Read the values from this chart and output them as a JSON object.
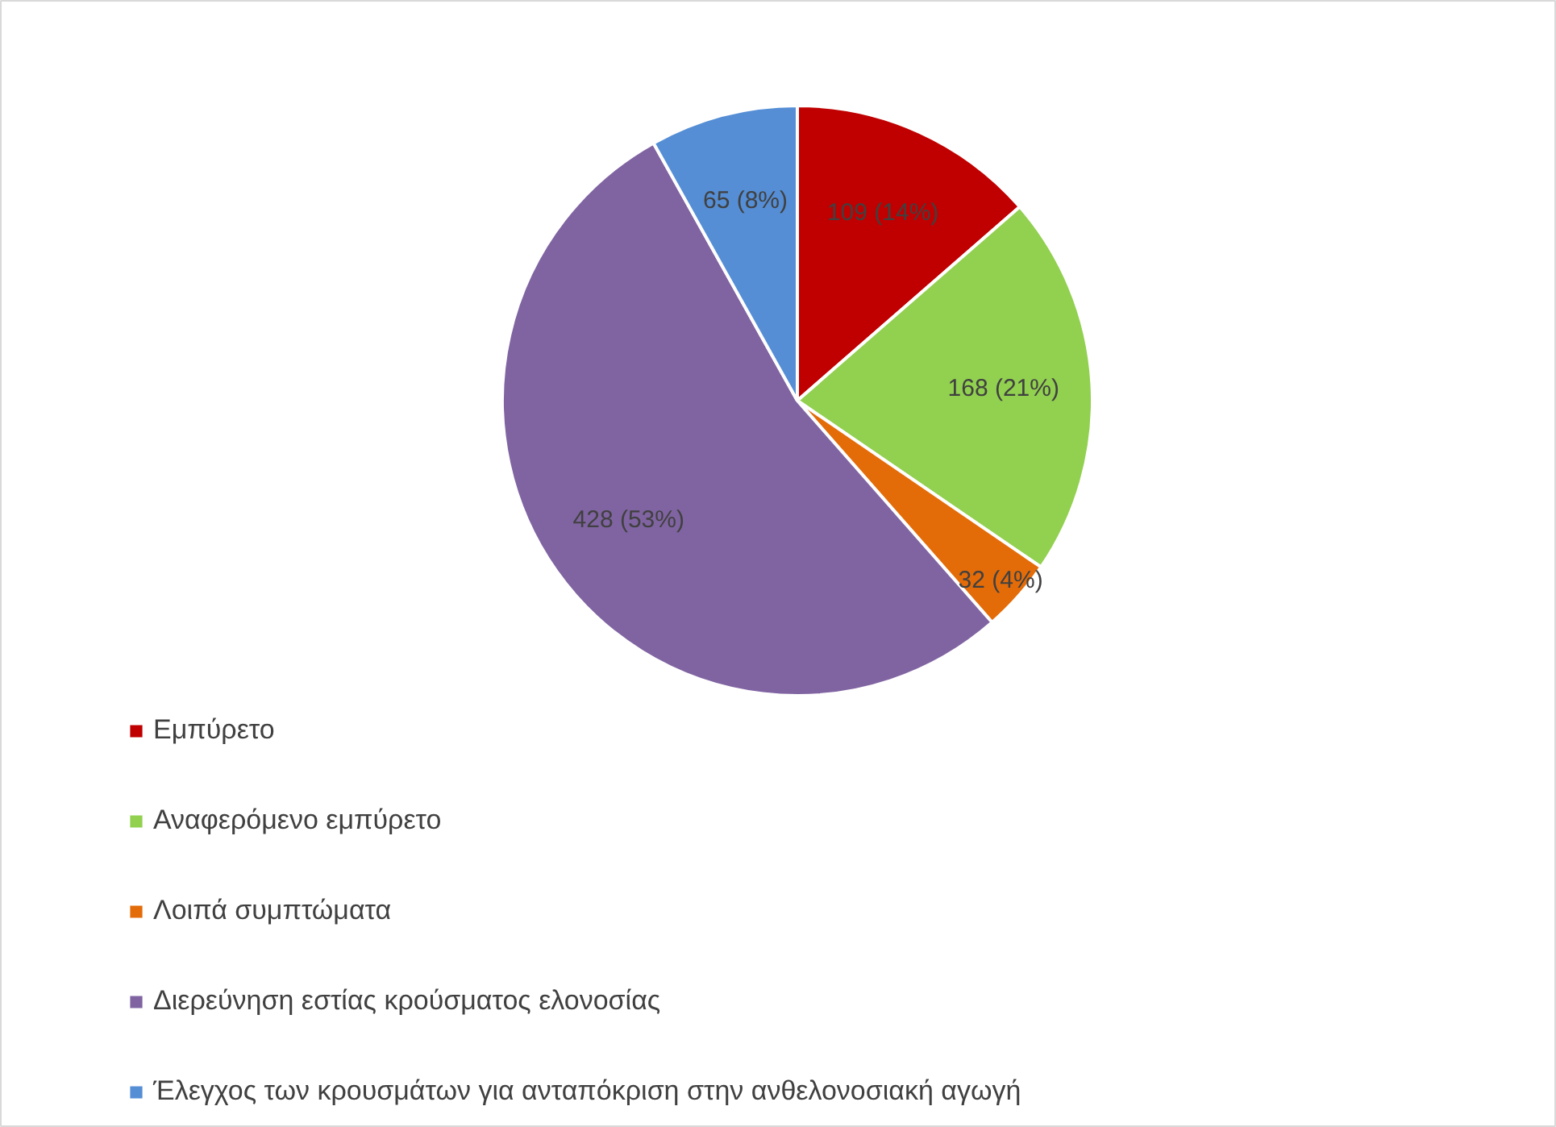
{
  "chart_data": {
    "type": "pie",
    "categories": [
      "Εμπύρετο",
      "Αναφερόμενο εμπύρετο",
      "Λοιπά συμπτώματα",
      "Διερεύνηση εστίας κρούσματος ελονοσίας",
      "Έλεγχος των κρουσμάτων για ανταπόκριση στην ανθελονοσιακή αγωγή"
    ],
    "values": [
      109,
      168,
      32,
      428,
      65
    ],
    "colors": [
      "#c00000",
      "#92d050",
      "#e36c09",
      "#8064a2",
      "#558ed5"
    ],
    "value_labels": [
      "109 (14%)",
      "168 (21%)",
      "32 (4%)",
      "428 (53%)",
      "65 (8%)"
    ],
    "legend": "bottom"
  }
}
